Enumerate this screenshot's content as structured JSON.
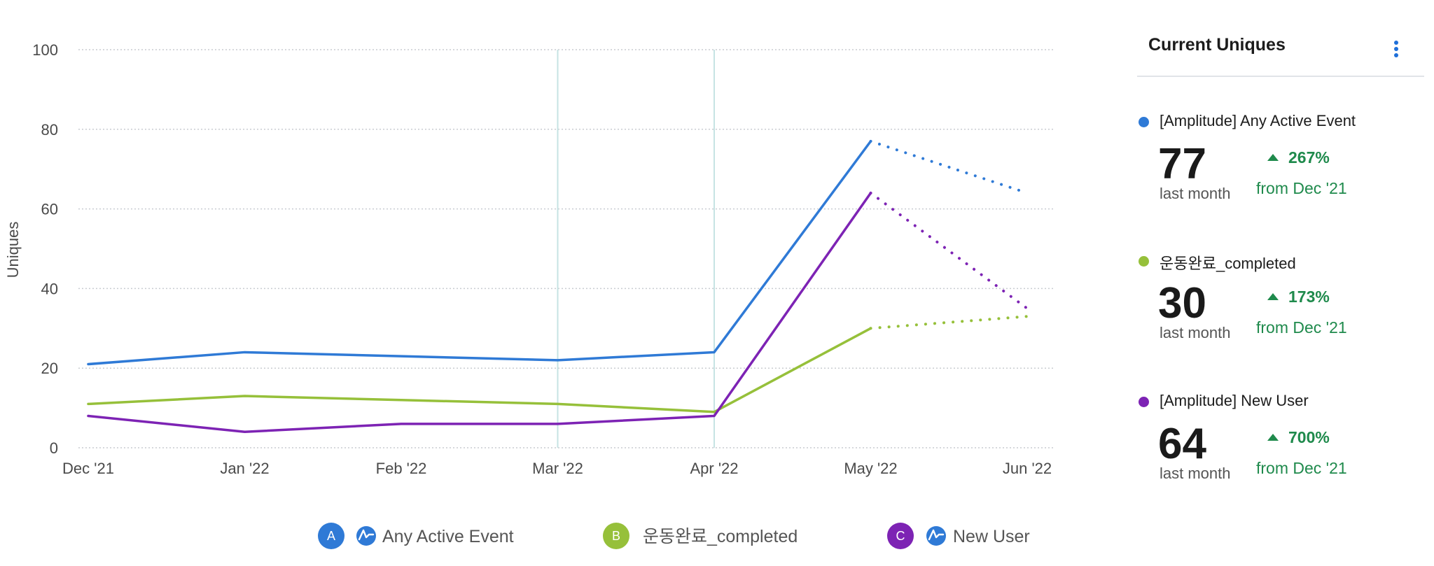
{
  "colors": {
    "blue": "#2f7ad6",
    "green": "#96c03a",
    "purple": "#7d23b4",
    "grid": "#c9ccd1",
    "vline": "#c6e3e3",
    "positive": "#1f8a4c"
  },
  "chart_data": {
    "type": "line",
    "categories": [
      "Dec '21",
      "Jan '22",
      "Feb '22",
      "Mar '22",
      "Apr '22",
      "May '22",
      "Jun '22"
    ],
    "ylabel": "Uniques",
    "ylim": [
      0,
      100
    ],
    "yticks": [
      0,
      20,
      40,
      60,
      80,
      100
    ],
    "grid": "horizontal dotted",
    "highlighted_categories": [
      "Mar '22",
      "Apr '22"
    ],
    "projected_from_index": 5,
    "series": [
      {
        "name": "Any Active Event",
        "color": "#2f7ad6",
        "values": [
          21,
          24,
          23,
          22,
          24,
          77,
          64
        ]
      },
      {
        "name": "운동완료_completed",
        "color": "#96c03a",
        "values": [
          11,
          13,
          12,
          11,
          9,
          30,
          33
        ]
      },
      {
        "name": "New User",
        "color": "#7d23b4",
        "values": [
          8,
          4,
          6,
          6,
          8,
          64,
          35
        ]
      }
    ]
  },
  "legend": [
    {
      "badge": "A",
      "color": "#2f7ad6",
      "icon": "amplitude-icon",
      "label": "Any Active Event"
    },
    {
      "badge": "B",
      "color": "#96c03a",
      "icon": "",
      "label": "운동완료_completed"
    },
    {
      "badge": "C",
      "color": "#7d23b4",
      "icon": "amplitude-icon",
      "label": "New User"
    }
  ],
  "panel": {
    "title": "Current Uniques",
    "more_icon": "kebab-menu-icon",
    "entries": [
      {
        "name": "[Amplitude] Any Active Event",
        "color": "#2f7ad6",
        "value": "77",
        "sub": "last month",
        "change": "267%",
        "from": "from Dec '21"
      },
      {
        "name": "운동완료_completed",
        "color": "#96c03a",
        "value": "30",
        "sub": "last month",
        "change": "173%",
        "from": "from Dec '21"
      },
      {
        "name": "[Amplitude] New User",
        "color": "#7d23b4",
        "value": "64",
        "sub": "last month",
        "change": "700%",
        "from": "from Dec '21"
      }
    ]
  }
}
